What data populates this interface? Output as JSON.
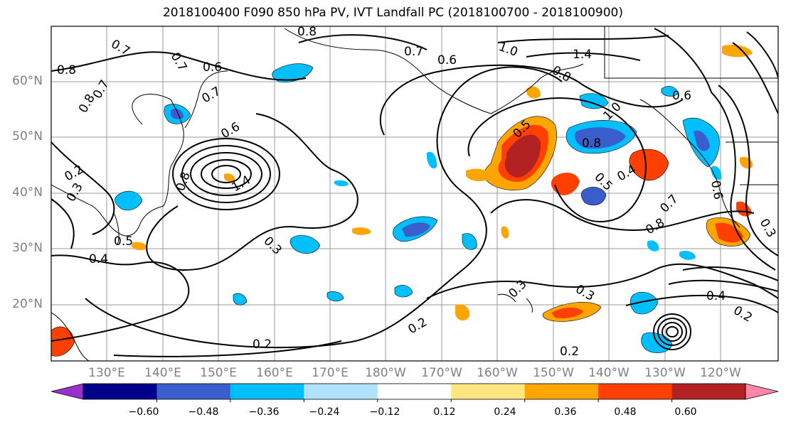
{
  "title": "2018100400 F090 850 hPa PV, IVT Landfall PC (2018100700 - 2018100900)",
  "map": {
    "lat_labels": [
      "60°N",
      "50°N",
      "40°N",
      "30°N",
      "20°N"
    ],
    "lon_labels": [
      "130°E",
      "140°E",
      "150°E",
      "160°E",
      "170°E",
      "180°W",
      "170°W",
      "160°W",
      "150°W",
      "140°W",
      "130°W",
      "120°W"
    ],
    "contour_labels": [
      "0.7",
      "0.8",
      "0.7",
      "0.7",
      "0.6",
      "0.8",
      "1.0",
      "1.4",
      "0.8",
      "0.6",
      "0.6",
      "0.7",
      "0.8",
      "0.7",
      "0.6",
      "0.5",
      "1.0",
      "0.8",
      "0.6",
      "0.2",
      "0.3",
      "0.5",
      "0.4",
      "0.3",
      "1.4",
      "0.2",
      "0.5",
      "0.4",
      "0.7",
      "0.8",
      "0.3",
      "0.3",
      "0.2",
      "0.2",
      "0.4",
      "0.2",
      "0.3",
      "0.8"
    ]
  },
  "colorbar": {
    "ticks": [
      "−0.60",
      "−0.48",
      "−0.36",
      "−0.24",
      "−0.12",
      "0.12",
      "0.24",
      "0.36",
      "0.48",
      "0.60"
    ],
    "colors": [
      "#9932cc",
      "#00008b",
      "#3a5fcd",
      "#00bfff",
      "#b0e2ff",
      "#ffffff",
      "#ffe680",
      "#ffa500",
      "#ff4000",
      "#b22222",
      "#ff88aa"
    ]
  }
}
